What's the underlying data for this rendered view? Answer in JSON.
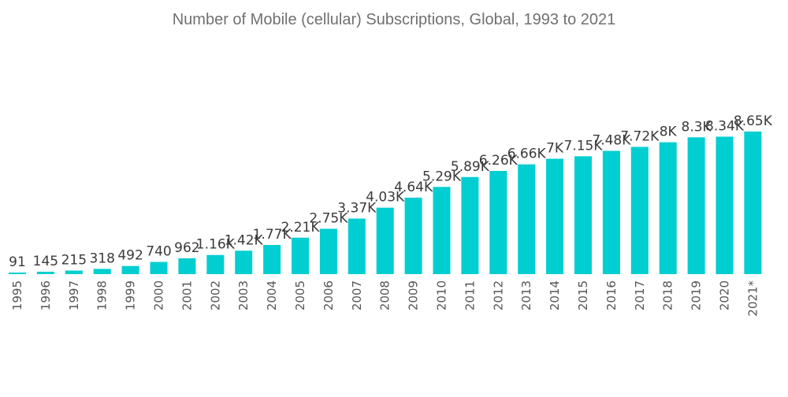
{
  "chart_data": {
    "type": "bar",
    "title": "Number of Mobile (cellular) Subscriptions, Global, 1993 to 2021",
    "xlabel": "",
    "ylabel": "",
    "categories": [
      "1995",
      "1996",
      "1997",
      "1998",
      "1999",
      "2000",
      "2001",
      "2002",
      "2003",
      "2004",
      "2005",
      "2006",
      "2007",
      "2008",
      "2009",
      "2010",
      "2011",
      "2012",
      "2013",
      "2014",
      "2015",
      "2016",
      "2017",
      "2018",
      "2019",
      "2020",
      "2021*"
    ],
    "values": [
      91,
      145,
      215,
      318,
      492,
      740,
      962,
      1160,
      1420,
      1770,
      2210,
      2750,
      3370,
      4030,
      4640,
      5290,
      5890,
      6260,
      6660,
      7000,
      7150,
      7480,
      7720,
      8000,
      8300,
      8340,
      8650
    ],
    "data_labels": [
      "91",
      "145",
      "215",
      "318",
      "492",
      "740",
      "962",
      "1.16K",
      "1.42K",
      "1.77K",
      "2.21K",
      "2.75K",
      "3.37K",
      "4.03K",
      "4.64K",
      "5.29K",
      "5.89K",
      "6.26K",
      "6.66K",
      "7K",
      "7.15K",
      "7.48K",
      "7.72K",
      "8K",
      "8.3K",
      "8.34K",
      "8.65K"
    ],
    "ylim": [
      0,
      8650
    ],
    "grid": false,
    "legend": "none",
    "bar_color": "#00ced1"
  }
}
